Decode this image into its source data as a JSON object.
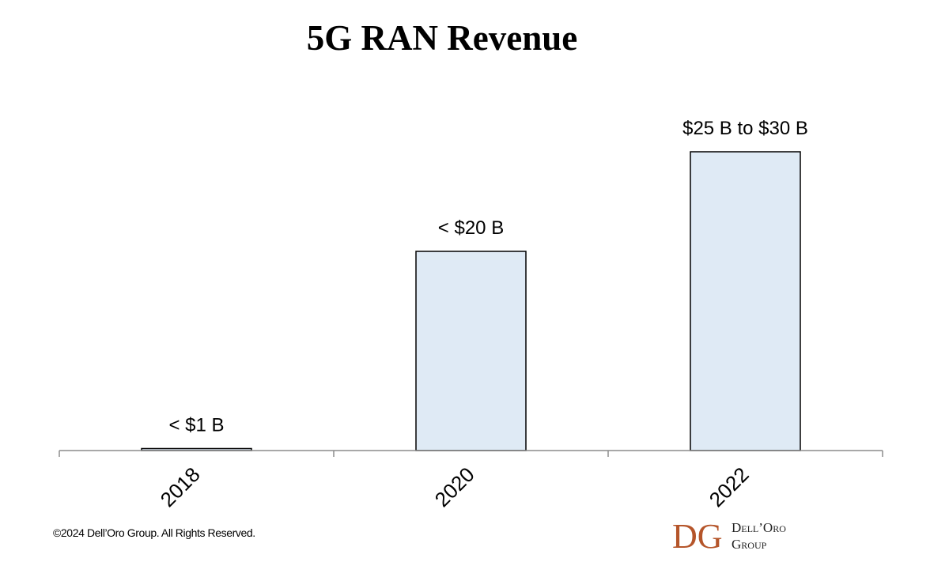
{
  "chart_data": {
    "type": "bar",
    "title": "5G RAN Revenue",
    "categories": [
      "2018",
      "2020",
      "2022"
    ],
    "values": [
      0.2,
      20,
      30
    ],
    "data_labels": [
      "< $1 B",
      "< $20 B",
      "$25 B to $30 B"
    ],
    "xlabel": "",
    "ylabel": "",
    "ylim": [
      0,
      30
    ],
    "grid": false,
    "legend": "none",
    "unit": "B"
  },
  "colors": {
    "bar_fill": "#dfeaf5",
    "bar_stroke": "#000000",
    "axis": "#8c8c8c",
    "logo_accent": "#b5552a"
  },
  "footer": {
    "copyright": "©2024 Dell’Oro Group. All Rights Reserved."
  },
  "logo": {
    "mark": "DG",
    "line1": "Dell’Oro",
    "line2": "Group"
  }
}
